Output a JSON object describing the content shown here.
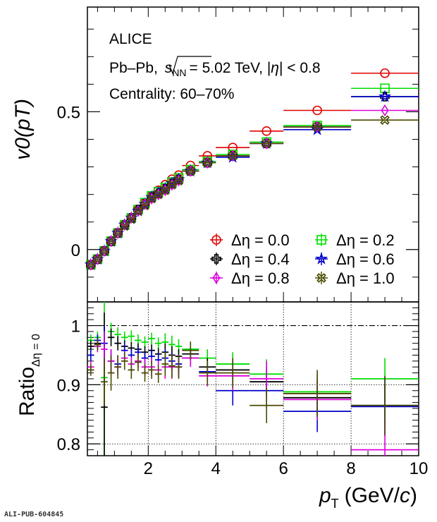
{
  "chart_data": [
    {
      "type": "scatter",
      "panel": "top",
      "ylabel": "v0(pT)",
      "yticks": [
        0,
        0.5
      ],
      "ytick_labels": [
        "0",
        "0.5"
      ],
      "ylim": [
        -0.19,
        0.88
      ],
      "xlim": [
        0.2,
        10
      ],
      "annotations": {
        "experiment": "ALICE",
        "system_prefix": "Pb–Pb,",
        "energy_suffix": "= 5.02 TeV, |",
        "eta_suffix": "| < 0.8",
        "centrality": "Centrality: 60–70%"
      },
      "legend_position": "bottom-right",
      "series": [
        {
          "name": "Δη = 0.0",
          "color": "#e00000",
          "marker": "circle",
          "x": [
            0.3,
            0.5,
            0.7,
            0.9,
            1.1,
            1.3,
            1.5,
            1.7,
            1.9,
            2.1,
            2.3,
            2.5,
            2.7,
            2.9,
            3.25,
            3.75,
            4.5,
            5.5,
            7,
            9
          ],
          "xerr": [
            0.1,
            0.1,
            0.1,
            0.1,
            0.1,
            0.1,
            0.1,
            0.1,
            0.1,
            0.1,
            0.1,
            0.1,
            0.1,
            0.1,
            0.25,
            0.25,
            0.5,
            0.5,
            1,
            1
          ],
          "y": [
            -0.055,
            -0.035,
            -0.005,
            0.03,
            0.06,
            0.09,
            0.115,
            0.145,
            0.17,
            0.195,
            0.215,
            0.235,
            0.255,
            0.27,
            0.305,
            0.34,
            0.37,
            0.43,
            0.505,
            0.64
          ]
        },
        {
          "name": "Δη = 0.2",
          "color": "#00dd00",
          "marker": "open-square",
          "x": [
            0.3,
            0.5,
            0.7,
            0.9,
            1.1,
            1.3,
            1.5,
            1.7,
            1.9,
            2.1,
            2.3,
            2.5,
            2.7,
            2.9,
            3.25,
            3.75,
            4.5,
            5.5,
            7,
            9
          ],
          "xerr": [
            0.1,
            0.1,
            0.1,
            0.1,
            0.1,
            0.1,
            0.1,
            0.1,
            0.1,
            0.1,
            0.1,
            0.1,
            0.1,
            0.1,
            0.25,
            0.25,
            0.5,
            0.5,
            1,
            1
          ],
          "y": [
            -0.055,
            -0.035,
            -0.005,
            0.03,
            0.06,
            0.09,
            0.115,
            0.145,
            0.17,
            0.195,
            0.21,
            0.225,
            0.245,
            0.26,
            0.29,
            0.32,
            0.345,
            0.39,
            0.45,
            0.585
          ]
        },
        {
          "name": "Δη = 0.4",
          "color": "#000000",
          "marker": "open-cross",
          "x": [
            0.3,
            0.5,
            0.7,
            0.9,
            1.1,
            1.3,
            1.5,
            1.7,
            1.9,
            2.1,
            2.3,
            2.5,
            2.7,
            2.9,
            3.25,
            3.75,
            4.5,
            5.5,
            7,
            9
          ],
          "xerr": [
            0.1,
            0.1,
            0.1,
            0.1,
            0.1,
            0.1,
            0.1,
            0.1,
            0.1,
            0.1,
            0.1,
            0.1,
            0.1,
            0.1,
            0.25,
            0.25,
            0.5,
            0.5,
            1,
            1
          ],
          "y": [
            -0.055,
            -0.035,
            -0.005,
            0.03,
            0.06,
            0.09,
            0.115,
            0.145,
            0.165,
            0.19,
            0.205,
            0.22,
            0.24,
            0.255,
            0.285,
            0.315,
            0.34,
            0.385,
            0.445,
            0.555
          ]
        },
        {
          "name": "Δη = 0.6",
          "color": "#0000cc",
          "marker": "open-star",
          "x": [
            0.3,
            0.5,
            0.7,
            0.9,
            1.1,
            1.3,
            1.5,
            1.7,
            1.9,
            2.1,
            2.3,
            2.5,
            2.7,
            2.9,
            3.25,
            3.75,
            4.5,
            5.5,
            7,
            9
          ],
          "xerr": [
            0.1,
            0.1,
            0.1,
            0.1,
            0.1,
            0.1,
            0.1,
            0.1,
            0.1,
            0.1,
            0.1,
            0.1,
            0.1,
            0.1,
            0.25,
            0.25,
            0.5,
            0.5,
            1,
            1
          ],
          "y": [
            -0.055,
            -0.035,
            -0.005,
            0.03,
            0.06,
            0.09,
            0.115,
            0.14,
            0.165,
            0.19,
            0.205,
            0.22,
            0.24,
            0.255,
            0.285,
            0.315,
            0.335,
            0.385,
            0.435,
            0.555
          ]
        },
        {
          "name": "Δη = 0.8",
          "color": "#dd00dd",
          "marker": "open-diamond",
          "x": [
            0.3,
            0.5,
            0.7,
            0.9,
            1.1,
            1.3,
            1.5,
            1.7,
            1.9,
            2.1,
            2.3,
            2.5,
            2.7,
            2.9,
            3.25,
            3.75,
            4.5,
            5.5,
            7,
            9
          ],
          "xerr": [
            0.1,
            0.1,
            0.1,
            0.1,
            0.1,
            0.1,
            0.1,
            0.1,
            0.1,
            0.1,
            0.1,
            0.1,
            0.1,
            0.1,
            0.25,
            0.25,
            0.5,
            0.5,
            1,
            1
          ],
          "y": [
            -0.055,
            -0.035,
            -0.005,
            0.03,
            0.06,
            0.09,
            0.115,
            0.14,
            0.165,
            0.185,
            0.2,
            0.215,
            0.235,
            0.25,
            0.285,
            0.315,
            0.34,
            0.385,
            0.445,
            0.505
          ]
        },
        {
          "name": "Δη = 1.0",
          "color": "#4a4a00",
          "marker": "open-x",
          "x": [
            0.3,
            0.5,
            0.7,
            0.9,
            1.1,
            1.3,
            1.5,
            1.7,
            1.9,
            2.1,
            2.3,
            2.5,
            2.7,
            2.9,
            3.25,
            3.75,
            4.5,
            5.5,
            7,
            9
          ],
          "xerr": [
            0.1,
            0.1,
            0.1,
            0.1,
            0.1,
            0.1,
            0.1,
            0.1,
            0.1,
            0.1,
            0.1,
            0.1,
            0.1,
            0.1,
            0.25,
            0.25,
            0.5,
            0.5,
            1,
            1
          ],
          "y": [
            -0.055,
            -0.035,
            -0.005,
            0.03,
            0.06,
            0.085,
            0.11,
            0.14,
            0.16,
            0.185,
            0.2,
            0.215,
            0.235,
            0.25,
            0.285,
            0.315,
            0.34,
            0.385,
            0.445,
            0.47
          ]
        }
      ],
      "legend": [
        {
          "label": "Δη = 0.0",
          "series": 0
        },
        {
          "label": "Δη = 0.2",
          "series": 1
        },
        {
          "label": "Δη = 0.4",
          "series": 2
        },
        {
          "label": "Δη = 0.6",
          "series": 3
        },
        {
          "label": "Δη = 0.8",
          "series": 4
        },
        {
          "label": "Δη = 1.0",
          "series": 5
        }
      ]
    },
    {
      "type": "scatter",
      "panel": "bottom",
      "ylabel": "Ratio",
      "ylabel_subscript": "Δη = 0",
      "xlabel": "(GeV/",
      "xlabel_unit_symbol": "c",
      "xlabel_close": ")",
      "xlim": [
        0.2,
        10
      ],
      "ylim": [
        0.78,
        1.04
      ],
      "xticks": [
        2,
        4,
        6,
        8,
        10
      ],
      "xtick_labels": [
        "2",
        "4",
        "6",
        "8",
        "10"
      ],
      "yticks": [
        0.8,
        0.9,
        1
      ],
      "ytick_labels": [
        "0.8",
        "0.9",
        "1"
      ],
      "grid": true,
      "reference_line": 1.0,
      "series": [
        {
          "name": "Δη = 0.2",
          "color": "#00dd00",
          "x": [
            0.3,
            0.5,
            0.7,
            0.9,
            1.1,
            1.3,
            1.5,
            1.7,
            1.9,
            2.1,
            2.3,
            2.5,
            2.7,
            2.9,
            3.25,
            3.75,
            4.5,
            5.5,
            7,
            9
          ],
          "xerr": [
            0.1,
            0.1,
            0.1,
            0.1,
            0.1,
            0.1,
            0.1,
            0.1,
            0.1,
            0.1,
            0.1,
            0.1,
            0.1,
            0.1,
            0.25,
            0.25,
            0.5,
            0.5,
            1,
            1
          ],
          "y": [
            0.975,
            0.98,
            0.912,
            0.99,
            0.985,
            0.98,
            0.982,
            0.975,
            0.972,
            0.978,
            0.97,
            0.972,
            0.968,
            0.965,
            0.96,
            0.945,
            0.935,
            0.918,
            0.888,
            0.91
          ],
          "yerr": [
            0.01,
            0.01,
            0.15,
            0.015,
            0.012,
            0.01,
            0.01,
            0.01,
            0.01,
            0.01,
            0.01,
            0.015,
            0.015,
            0.012,
            0.01,
            0.015,
            0.02,
            0.025,
            0.03,
            0.035
          ]
        },
        {
          "name": "Δη = 0.4",
          "color": "#000000",
          "x": [
            0.3,
            0.5,
            0.7,
            0.9,
            1.1,
            1.3,
            1.5,
            1.7,
            1.9,
            2.1,
            2.3,
            2.5,
            2.7,
            2.9,
            3.25,
            3.75,
            4.5,
            5.5,
            7,
            9
          ],
          "xerr": [
            0.1,
            0.1,
            0.1,
            0.1,
            0.1,
            0.1,
            0.1,
            0.1,
            0.1,
            0.1,
            0.1,
            0.1,
            0.1,
            0.1,
            0.25,
            0.25,
            0.5,
            0.5,
            1,
            1
          ],
          "y": [
            0.965,
            0.97,
            0.862,
            0.98,
            0.97,
            0.965,
            0.962,
            0.96,
            0.955,
            0.958,
            0.952,
            0.955,
            0.95,
            0.948,
            0.952,
            0.93,
            0.925,
            0.905,
            0.878,
            0.865
          ],
          "yerr": [
            0.01,
            0.01,
            0.16,
            0.015,
            0.012,
            0.01,
            0.01,
            0.01,
            0.01,
            0.01,
            0.01,
            0.015,
            0.015,
            0.012,
            0.01,
            0.015,
            0.02,
            0.025,
            0.03,
            0.035
          ]
        },
        {
          "name": "Δη = 0.6",
          "color": "#0000cc",
          "x": [
            0.3,
            0.5,
            0.7,
            0.9,
            1.1,
            1.3,
            1.5,
            1.7,
            1.9,
            2.1,
            2.3,
            2.5,
            2.7,
            2.9,
            3.25,
            3.75,
            4.5,
            5.5,
            7,
            9
          ],
          "xerr": [
            0.1,
            0.1,
            0.1,
            0.1,
            0.1,
            0.1,
            0.1,
            0.1,
            0.1,
            0.1,
            0.1,
            0.1,
            0.1,
            0.1,
            0.25,
            0.25,
            0.5,
            0.5,
            1,
            1
          ],
          "y": [
            0.95,
            0.975,
            0.97,
            0.94,
            0.935,
            0.958,
            0.95,
            0.955,
            0.945,
            0.948,
            0.942,
            0.945,
            0.94,
            0.935,
            0.945,
            0.922,
            0.89,
            0.89,
            0.855,
            0.863
          ],
          "yerr": [
            0.01,
            0.01,
            0.03,
            0.02,
            0.015,
            0.012,
            0.01,
            0.01,
            0.01,
            0.012,
            0.012,
            0.015,
            0.015,
            0.015,
            0.012,
            0.015,
            0.025,
            0.03,
            0.035,
            0.05
          ]
        },
        {
          "name": "Δη = 0.8",
          "color": "#dd00dd",
          "x": [
            0.3,
            0.5,
            0.7,
            0.9,
            1.1,
            1.3,
            1.5,
            1.7,
            1.9,
            2.1,
            2.3,
            2.5,
            2.7,
            2.9,
            3.25,
            3.75,
            4.5,
            5.5,
            7,
            9
          ],
          "xerr": [
            0.1,
            0.1,
            0.1,
            0.1,
            0.1,
            0.1,
            0.1,
            0.1,
            0.1,
            0.1,
            0.1,
            0.1,
            0.1,
            0.1,
            0.25,
            0.25,
            0.5,
            0.5,
            1,
            1
          ],
          "y": [
            0.93,
            0.965,
            0.96,
            0.94,
            0.93,
            0.945,
            0.935,
            0.94,
            0.93,
            0.93,
            0.925,
            0.93,
            0.93,
            0.93,
            0.945,
            0.915,
            0.915,
            0.91,
            0.875,
            0.79
          ],
          "yerr": [
            0.01,
            0.01,
            0.03,
            0.02,
            0.015,
            0.012,
            0.012,
            0.012,
            0.015,
            0.015,
            0.015,
            0.02,
            0.02,
            0.018,
            0.015,
            0.018,
            0.025,
            0.03,
            0.035,
            0.05
          ]
        },
        {
          "name": "Δη = 1.0",
          "color": "#4a4a00",
          "x": [
            0.3,
            0.5,
            0.7,
            0.9,
            1.1,
            1.3,
            1.5,
            1.7,
            1.9,
            2.1,
            2.3,
            2.5,
            2.7,
            2.9,
            3.25,
            3.75,
            4.5,
            5.5,
            7,
            9
          ],
          "xerr": [
            0.1,
            0.1,
            0.1,
            0.1,
            0.1,
            0.1,
            0.1,
            0.1,
            0.1,
            0.1,
            0.1,
            0.1,
            0.1,
            0.1,
            0.25,
            0.25,
            0.5,
            0.5,
            1,
            1
          ],
          "y": [
            0.925,
            0.968,
            0.905,
            0.92,
            0.93,
            0.94,
            0.925,
            0.938,
            0.92,
            0.925,
            0.918,
            0.935,
            0.932,
            0.93,
            0.958,
            0.92,
            0.92,
            0.865,
            0.885,
            0.865
          ],
          "yerr": [
            0.01,
            0.01,
            0.04,
            0.03,
            0.02,
            0.015,
            0.015,
            0.015,
            0.015,
            0.015,
            0.015,
            0.02,
            0.02,
            0.02,
            0.015,
            0.02,
            0.025,
            0.03,
            0.04,
            0.05
          ]
        }
      ]
    }
  ],
  "footer": {
    "pub_id": "ALI-PUB-604845"
  }
}
